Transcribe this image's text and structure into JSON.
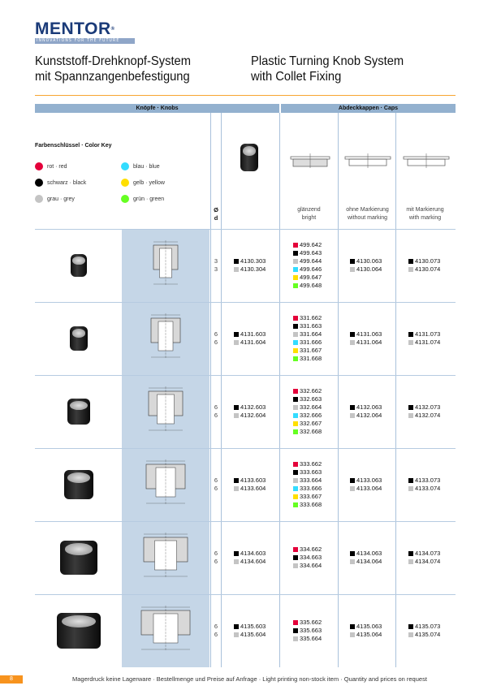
{
  "logo": {
    "name": "MENTOR",
    "tagline": "INNOVATIONS FOR THE FUTURE"
  },
  "title_de": [
    "Kunststoff-Drehknopf-System",
    "mit Spannzangenbefestigung"
  ],
  "title_en": [
    "Plastic Turning Knob System",
    "with Collet Fixing"
  ],
  "table": {
    "knobs_header": "Knöpfe · Knobs",
    "caps_header": "Abdeckkappen · Caps",
    "d_header": [
      "Ø",
      "d"
    ],
    "cap_columns": [
      [
        "glänzend",
        "bright"
      ],
      [
        "ohne Markierung",
        "without marking"
      ],
      [
        "mit Markierung",
        "with marking"
      ]
    ]
  },
  "color_key": {
    "title": "Farbenschlüssel · Color Key",
    "items": [
      {
        "label": "rot · red",
        "color": "#e4003a"
      },
      {
        "label": "blau · blue",
        "color": "#33dcff"
      },
      {
        "label": "schwarz · black",
        "color": "#000000"
      },
      {
        "label": "gelb · yellow",
        "color": "#ffdf00"
      },
      {
        "label": "grau · grey",
        "color": "#c4c4c4"
      },
      {
        "label": "grün · green",
        "color": "#66ff22"
      }
    ]
  },
  "swatch_colors": {
    "red": "#e4003a",
    "black": "#000000",
    "grey": "#c4c4c4",
    "blue": "#33dcff",
    "yellow": "#ffdf00",
    "green": "#66ff22"
  },
  "rows": [
    {
      "d": [
        "3",
        "3"
      ],
      "knobs": [
        [
          "black",
          "4130.303"
        ],
        [
          "grey",
          "4130.304"
        ]
      ],
      "bright": [
        [
          "red",
          "499.642"
        ],
        [
          "black",
          "499.643"
        ],
        [
          "grey",
          "499.644"
        ],
        [
          "blue",
          "499.646"
        ],
        [
          "yellow",
          "499.647"
        ],
        [
          "green",
          "499.648"
        ]
      ],
      "without": [
        [
          "black",
          "4130.063"
        ],
        [
          "grey",
          "4130.064"
        ]
      ],
      "with": [
        [
          "black",
          "4130.073"
        ],
        [
          "grey",
          "4130.074"
        ]
      ]
    },
    {
      "d": [
        "6",
        "6"
      ],
      "knobs": [
        [
          "black",
          "4131.603"
        ],
        [
          "grey",
          "4131.604"
        ]
      ],
      "bright": [
        [
          "red",
          "331.662"
        ],
        [
          "black",
          "331.663"
        ],
        [
          "grey",
          "331.664"
        ],
        [
          "blue",
          "331.666"
        ],
        [
          "yellow",
          "331.667"
        ],
        [
          "green",
          "331.668"
        ]
      ],
      "without": [
        [
          "black",
          "4131.063"
        ],
        [
          "grey",
          "4131.064"
        ]
      ],
      "with": [
        [
          "black",
          "4131.073"
        ],
        [
          "grey",
          "4131.074"
        ]
      ]
    },
    {
      "d": [
        "6",
        "6"
      ],
      "knobs": [
        [
          "black",
          "4132.603"
        ],
        [
          "grey",
          "4132.604"
        ]
      ],
      "bright": [
        [
          "red",
          "332.662"
        ],
        [
          "black",
          "332.663"
        ],
        [
          "grey",
          "332.664"
        ],
        [
          "blue",
          "332.666"
        ],
        [
          "yellow",
          "332.667"
        ],
        [
          "green",
          "332.668"
        ]
      ],
      "without": [
        [
          "black",
          "4132.063"
        ],
        [
          "grey",
          "4132.064"
        ]
      ],
      "with": [
        [
          "black",
          "4132.073"
        ],
        [
          "grey",
          "4132.074"
        ]
      ]
    },
    {
      "d": [
        "6",
        "6"
      ],
      "knobs": [
        [
          "black",
          "4133.603"
        ],
        [
          "grey",
          "4133.604"
        ]
      ],
      "bright": [
        [
          "red",
          "333.662"
        ],
        [
          "black",
          "333.663"
        ],
        [
          "grey",
          "333.664"
        ],
        [
          "blue",
          "333.666"
        ],
        [
          "yellow",
          "333.667"
        ],
        [
          "green",
          "333.668"
        ]
      ],
      "without": [
        [
          "black",
          "4133.063"
        ],
        [
          "grey",
          "4133.064"
        ]
      ],
      "with": [
        [
          "black",
          "4133.073"
        ],
        [
          "grey",
          "4133.074"
        ]
      ]
    },
    {
      "d": [
        "6",
        "6"
      ],
      "knobs": [
        [
          "black",
          "4134.603"
        ],
        [
          "grey",
          "4134.604"
        ]
      ],
      "bright": [
        [
          "red",
          "334.662"
        ],
        [
          "black",
          "334.663"
        ],
        [
          "grey",
          "334.664"
        ]
      ],
      "without": [
        [
          "black",
          "4134.063"
        ],
        [
          "grey",
          "4134.064"
        ]
      ],
      "with": [
        [
          "black",
          "4134.073"
        ],
        [
          "grey",
          "4134.074"
        ]
      ]
    },
    {
      "d": [
        "6",
        "6"
      ],
      "knobs": [
        [
          "black",
          "4135.603"
        ],
        [
          "grey",
          "4135.604"
        ]
      ],
      "bright": [
        [
          "red",
          "335.662"
        ],
        [
          "black",
          "335.663"
        ],
        [
          "grey",
          "335.664"
        ]
      ],
      "without": [
        [
          "black",
          "4135.063"
        ],
        [
          "grey",
          "4135.064"
        ]
      ],
      "with": [
        [
          "black",
          "4135.073"
        ],
        [
          "grey",
          "4135.074"
        ]
      ]
    }
  ],
  "footer": {
    "page_number": "8",
    "note": "Magerdruck keine Lagerware · Bestellmenge und Preise auf Anfrage · Light printing non-stock item · Quantity and prices on request"
  }
}
